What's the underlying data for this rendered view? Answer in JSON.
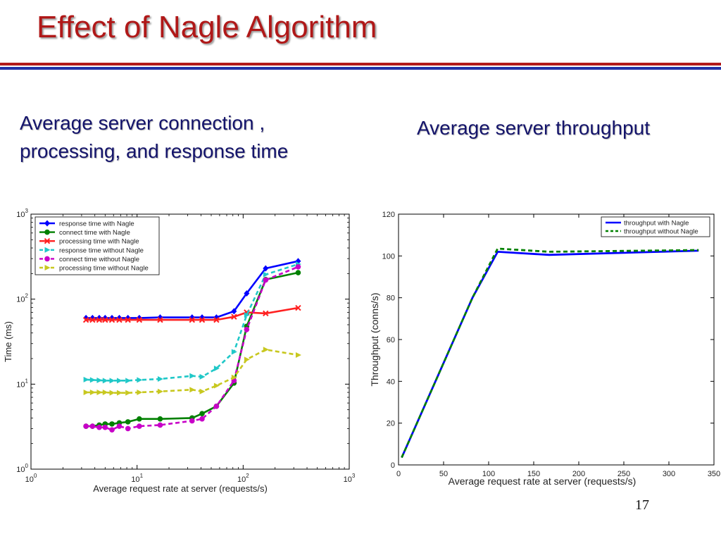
{
  "slide": {
    "title": "Effect of Nagle Algorithm",
    "subtitle_left_line1": "Average server connection ,",
    "subtitle_left_line2": "processing, and response time",
    "subtitle_right": "Average server throughput",
    "page_number": "17"
  },
  "chart_data": [
    {
      "type": "line",
      "xscale": "log",
      "yscale": "log",
      "xlim": [
        1,
        1000
      ],
      "ylim": [
        1,
        1000
      ],
      "xlabel": "Average request rate at server (requests/s)",
      "ylabel": "Time (ms)",
      "x_ticks": [
        "10",
        "10",
        "10",
        "10"
      ],
      "x_tick_exps": [
        "0",
        "1",
        "2",
        "3"
      ],
      "y_ticks": [
        "10",
        "10",
        "10",
        "10"
      ],
      "y_tick_exps": [
        "0",
        "1",
        "2",
        "3"
      ],
      "grid": false,
      "legend_position": "top-left",
      "series": [
        {
          "name": "response time with Nagle",
          "color": "#0000ff",
          "dash": "solid",
          "marker": "diamond",
          "x": [
            3.3,
            3.8,
            4.4,
            5.0,
            5.8,
            6.8,
            8.2,
            10.5,
            16.5,
            33,
            41,
            56,
            82,
            108,
            163,
            330
          ],
          "y": [
            60,
            60,
            60,
            60,
            60,
            60,
            60,
            60,
            61,
            61,
            61,
            61,
            72,
            117,
            230,
            280
          ]
        },
        {
          "name": "connect time with Nagle",
          "color": "#008000",
          "dash": "solid",
          "marker": "circle",
          "x": [
            3.3,
            3.8,
            4.4,
            5.0,
            5.8,
            6.8,
            8.2,
            10.5,
            16.5,
            33,
            41,
            56,
            82,
            108,
            163,
            330
          ],
          "y": [
            3.2,
            3.2,
            3.3,
            3.4,
            3.4,
            3.5,
            3.6,
            3.9,
            3.9,
            4.0,
            4.5,
            5.5,
            10.3,
            48,
            170,
            205
          ]
        },
        {
          "name": "processing time with Nagle",
          "color": "#ff2020",
          "dash": "solid",
          "marker": "x",
          "x": [
            3.3,
            3.8,
            4.4,
            5.0,
            5.8,
            6.8,
            8.2,
            10.5,
            16.5,
            33,
            41,
            56,
            82,
            108,
            163,
            330
          ],
          "y": [
            57,
            57,
            57,
            57,
            57,
            57,
            57,
            57,
            57,
            57,
            57,
            57,
            62,
            70,
            68,
            79
          ]
        },
        {
          "name": "response time without Nagle",
          "color": "#20c8c8",
          "dash": "dashed",
          "marker": "triangle-right",
          "x": [
            3.3,
            3.8,
            4.4,
            5.0,
            5.8,
            6.8,
            8.2,
            10.5,
            16.5,
            33,
            41,
            56,
            82,
            108,
            163,
            330
          ],
          "y": [
            11.3,
            11.2,
            11.1,
            11.0,
            11.0,
            11.0,
            11.0,
            11.2,
            11.5,
            12.5,
            12.2,
            15.3,
            24,
            65,
            195,
            258
          ]
        },
        {
          "name": "connect time without Nagle",
          "color": "#c800c8",
          "dash": "dashed",
          "marker": "circle",
          "x": [
            3.3,
            3.8,
            4.4,
            5.0,
            5.8,
            6.8,
            8.2,
            10.5,
            16.5,
            33,
            41,
            56,
            82,
            108,
            163,
            330
          ],
          "y": [
            3.2,
            3.2,
            3.1,
            3.1,
            2.9,
            3.2,
            3.0,
            3.2,
            3.3,
            3.7,
            3.9,
            5.5,
            11,
            44,
            168,
            240
          ]
        },
        {
          "name": "processing time without Nagle",
          "color": "#c8c820",
          "dash": "dashed",
          "marker": "triangle-right",
          "x": [
            3.3,
            3.8,
            4.4,
            5.0,
            5.8,
            6.8,
            8.2,
            10.5,
            16.5,
            33,
            41,
            56,
            82,
            108,
            163,
            330
          ],
          "y": [
            8.0,
            8.0,
            8.0,
            8.0,
            7.9,
            7.9,
            7.9,
            8.0,
            8.2,
            8.6,
            8.2,
            9.6,
            12,
            19.5,
            25.5,
            22
          ]
        }
      ]
    },
    {
      "type": "line",
      "xlim": [
        0,
        350
      ],
      "ylim": [
        0,
        120
      ],
      "xlabel": "Average request rate at server (requests/s)",
      "ylabel": "Throughput (conns/s)",
      "x_ticks": [
        0,
        50,
        100,
        150,
        200,
        250,
        300,
        350
      ],
      "y_ticks": [
        0,
        20,
        40,
        60,
        80,
        100,
        120
      ],
      "grid": false,
      "legend_position": "top-right",
      "series": [
        {
          "name": "throughput with Nagle",
          "color": "#0000ff",
          "dash": "solid",
          "x": [
            3.5,
            82,
            110,
            167,
            333
          ],
          "y": [
            3.5,
            80,
            102,
            100.5,
            102.5
          ]
        },
        {
          "name": "throughput without Nagle",
          "color": "#008000",
          "dash": "dashed",
          "x": [
            3.5,
            82,
            110,
            167,
            333
          ],
          "y": [
            3.5,
            80,
            103.5,
            102,
            102.8
          ]
        }
      ]
    }
  ]
}
